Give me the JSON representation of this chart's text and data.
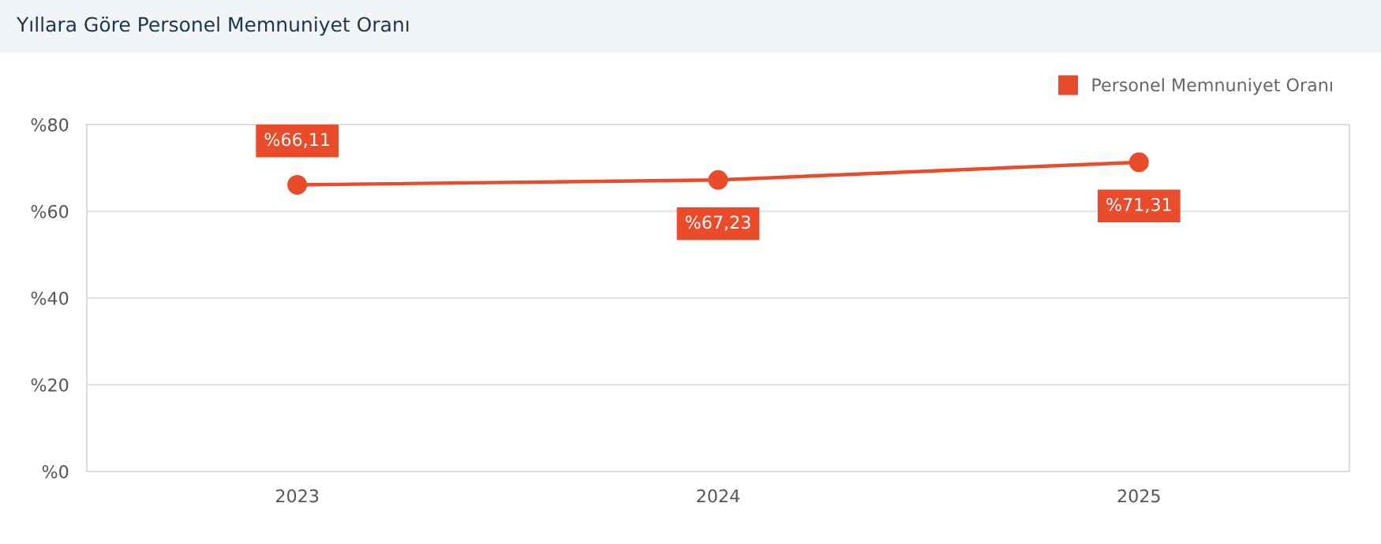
{
  "chart_data": {
    "type": "line",
    "title": "Yıllara Göre Personel Memnuniyet Oranı",
    "categories": [
      "2023",
      "2024",
      "2025"
    ],
    "series": [
      {
        "name": "Personel Memnuniyet Oranı",
        "color": "#e84c2b",
        "values": [
          66.11,
          67.23,
          71.31
        ],
        "value_labels": [
          "%66,11",
          "%67,23",
          "%71,31"
        ]
      }
    ],
    "ylim": [
      0,
      80
    ],
    "yticks": [
      {
        "value": 0,
        "label": "%0"
      },
      {
        "value": 20,
        "label": "%20"
      },
      {
        "value": 40,
        "label": "%40"
      },
      {
        "value": 60,
        "label": "%60"
      },
      {
        "value": 80,
        "label": "%80"
      }
    ],
    "grid": "y",
    "legend": "top right",
    "marker": "circle",
    "line_style": "solid"
  }
}
